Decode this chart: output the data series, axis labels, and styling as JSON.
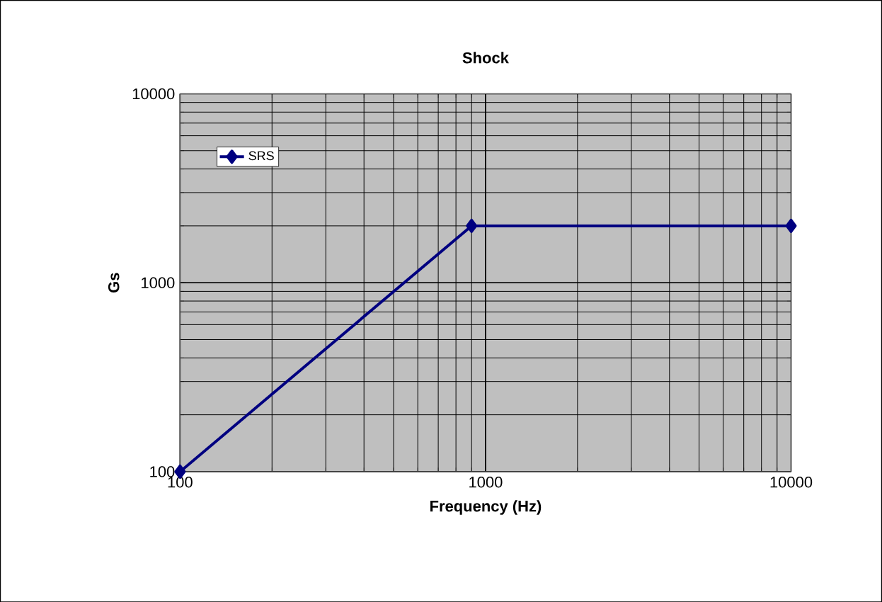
{
  "chart_data": {
    "type": "line",
    "title": "Shock",
    "xlabel": "Frequency (Hz)",
    "ylabel": "Gs",
    "x": [
      100,
      900,
      10000
    ],
    "series": [
      {
        "name": "SRS",
        "color": "#000080",
        "values": [
          100,
          2000,
          2000
        ]
      }
    ],
    "log": "xy",
    "xlim": [
      100,
      10000
    ],
    "ylim": [
      100,
      10000
    ],
    "xticks": [
      100,
      1000,
      10000
    ],
    "yticks": [
      100,
      1000,
      10000
    ],
    "grid": true,
    "legend": "top left",
    "marker": "diamond",
    "line_style": "solid"
  }
}
